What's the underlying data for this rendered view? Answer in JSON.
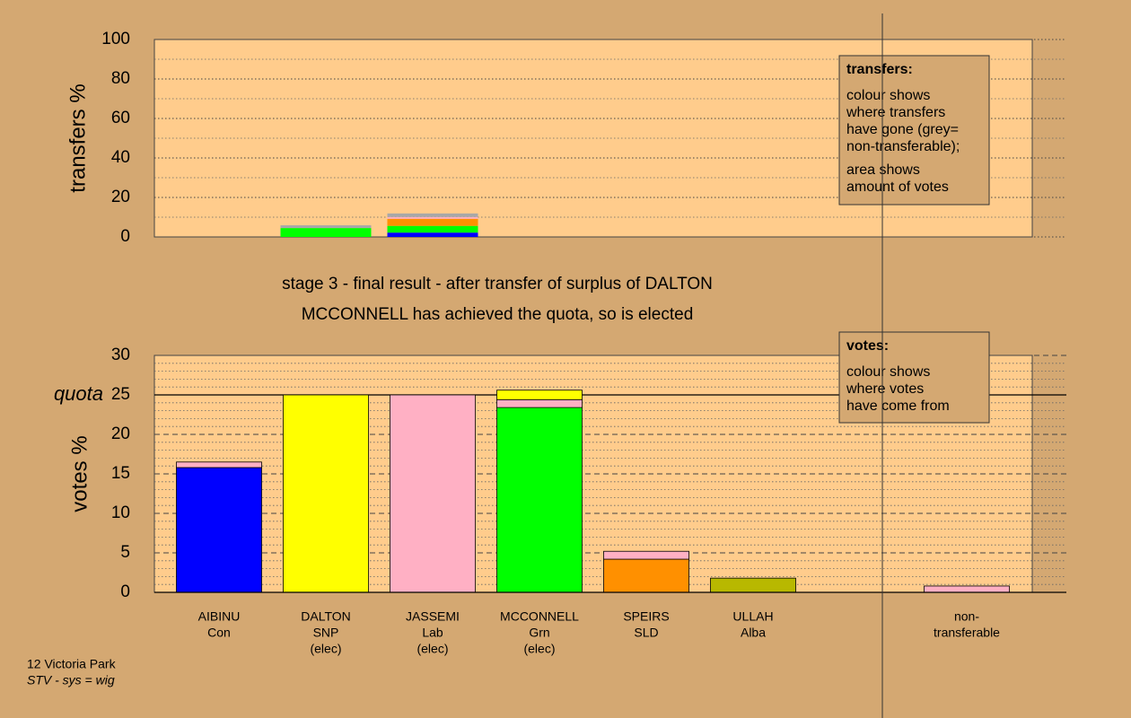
{
  "chart_data": [
    {
      "type": "stacked_bar",
      "ylabel": "transfers %",
      "ylim": [
        0,
        100
      ],
      "yticks": [
        0,
        20,
        40,
        60,
        80,
        100
      ],
      "minor_yticks": [
        10,
        30,
        50,
        70,
        90
      ],
      "grid": "dotted",
      "series": [
        {
          "color": "#0000ff",
          "values": [
            null,
            null,
            2.2,
            null,
            null,
            null,
            null,
            null
          ]
        },
        {
          "color": "#00ff00",
          "values": [
            null,
            4.5,
            3.4,
            null,
            null,
            null,
            null,
            null
          ]
        },
        {
          "color": "#ff9000",
          "values": [
            null,
            null,
            3.6,
            null,
            null,
            null,
            null,
            null
          ]
        },
        {
          "color": "#ffb0c4",
          "values": [
            null,
            null,
            0.9,
            null,
            null,
            null,
            null,
            null
          ]
        },
        {
          "color": "#a8a8a8",
          "values": [
            null,
            1.4,
            1.8,
            null,
            null,
            null,
            null,
            null
          ]
        }
      ],
      "note": {
        "heading": "transfers:",
        "paragraphs": [
          [
            "colour shows",
            "where transfers",
            "have gone (grey=",
            "non-transferable);"
          ],
          [
            "area shows",
            "amount of votes"
          ]
        ]
      }
    },
    {
      "type": "stacked_bar",
      "title": [
        "stage 3 - final result - after transfer of surplus of DALTON",
        "MCCONNELL has achieved the quota, so is elected"
      ],
      "ylabel": "votes %",
      "categories": [
        [
          "AIBINU",
          "Con"
        ],
        [
          "DALTON",
          "SNP",
          "(elec)"
        ],
        [
          "JASSEMI",
          "Lab",
          "(elec)"
        ],
        [
          "MCCONNELL",
          "Grn",
          "(elec)"
        ],
        [
          "SPEIRS",
          "SLD"
        ],
        [
          "ULLAH",
          "Alba"
        ],
        null,
        [
          "non-",
          "transferable"
        ]
      ],
      "ylim": [
        0,
        30
      ],
      "yticks": [
        0,
        5,
        10,
        15,
        20,
        25,
        30
      ],
      "minor_yticks": [
        1,
        2,
        3,
        4,
        6,
        7,
        8,
        9,
        11,
        12,
        13,
        14,
        16,
        17,
        18,
        19,
        21,
        22,
        23,
        24,
        26,
        27,
        28,
        29
      ],
      "grid": "dashed",
      "reference_line": {
        "value": 25,
        "label": "quota"
      },
      "series": [
        {
          "color": "#0000ff",
          "values": [
            15.8,
            null,
            null,
            null,
            null,
            null,
            null,
            null
          ]
        },
        {
          "color": "#00ff00",
          "values": [
            null,
            null,
            null,
            23.4,
            null,
            null,
            null,
            null
          ]
        },
        {
          "color": "#ff9000",
          "values": [
            null,
            null,
            null,
            null,
            4.2,
            null,
            null,
            null
          ]
        },
        {
          "color": "#b8b800",
          "values": [
            null,
            null,
            null,
            null,
            null,
            1.8,
            null,
            null
          ]
        },
        {
          "color": "#ffb0c4",
          "values": [
            0.7,
            null,
            25,
            1.0,
            1.0,
            null,
            null,
            0.8
          ]
        },
        {
          "color": "#ffff00",
          "values": [
            null,
            25,
            null,
            1.2,
            null,
            null,
            null,
            null
          ]
        }
      ],
      "note": {
        "heading": "votes:",
        "paragraphs": [
          [
            "colour shows",
            "where votes",
            "have come from"
          ]
        ]
      }
    }
  ],
  "footer": [
    "12 Victoria Park",
    "STV - sys = wig"
  ]
}
